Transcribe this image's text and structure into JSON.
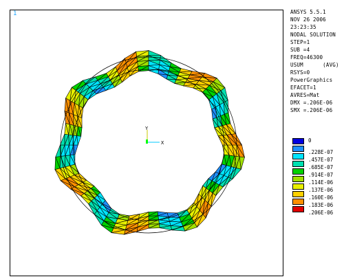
{
  "window": {
    "number": "1"
  },
  "info_lines": [
    "ANSYS 5.5.1",
    "NOV 26 2006",
    "23:23:35",
    "NODAL SOLUTION",
    "STEP=1",
    "SUB =4",
    "FREQ=46300",
    "USUM      (AVG)",
    "RSYS=0",
    "PowerGraphics",
    "EFACET=1",
    "AVRES=Mat",
    "DMX =.206E-06",
    "SMX =.206E-06"
  ],
  "legend": {
    "levels": [
      "0",
      ".228E-07",
      ".457E-07",
      ".685E-07",
      ".914E-07",
      ".114E-06",
      ".137E-06",
      ".160E-06",
      ".183E-06",
      ".206E-06"
    ],
    "colors": [
      "#0000e0",
      "#1e90ff",
      "#00e5ff",
      "#00e0b0",
      "#00d200",
      "#a0e000",
      "#e8f000",
      "#ffd000",
      "#ff9000",
      "#e00000"
    ]
  },
  "triad": {
    "x_label": "X",
    "y_label": "Y"
  },
  "colors": {
    "mesh": "#000000",
    "window_number": "#1aa3ff"
  }
}
